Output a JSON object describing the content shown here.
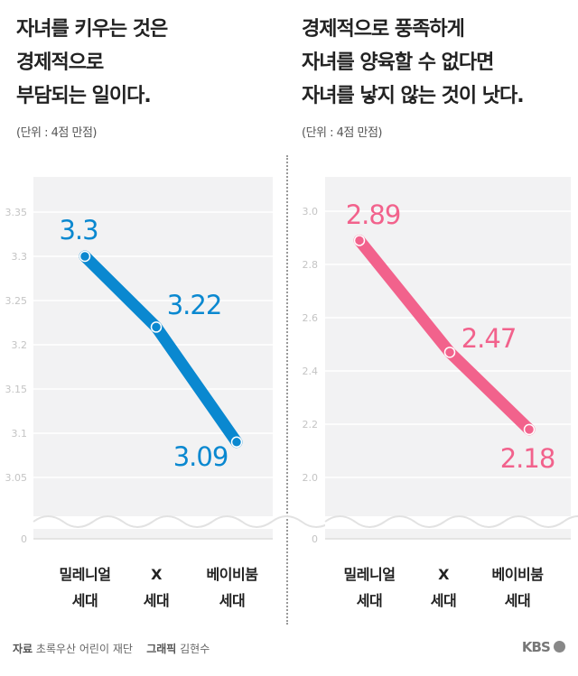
{
  "chart_data": [
    {
      "type": "line",
      "title": "자녀를 키우는 것은\n경제적으로\n부담되는 일이다.",
      "unit": "(단위 : 4점 만점)",
      "categories": [
        "밀레니얼\n세대",
        "X\n세대",
        "베이비붐\n세대"
      ],
      "values": [
        3.3,
        3.22,
        3.09
      ],
      "data_labels": [
        "3.3",
        "3.22",
        "3.09"
      ],
      "yticks": [
        "3.35",
        "3.3",
        "3.25",
        "3.2",
        "3.15",
        "3.1",
        "3.05",
        "0"
      ],
      "ylim": [
        3.0,
        3.4
      ],
      "axis_break": true,
      "grid": true,
      "color": "#0a88d0"
    },
    {
      "type": "line",
      "title": "경제적으로 풍족하게\n자녀를 양육할 수 없다면\n자녀를 낳지 않는 것이 낫다.",
      "unit": "(단위 : 4점 만점)",
      "categories": [
        "밀레니얼\n세대",
        "X\n세대",
        "베이비붐\n세대"
      ],
      "values": [
        2.89,
        2.47,
        2.18
      ],
      "data_labels": [
        "2.89",
        "2.47",
        "2.18"
      ],
      "yticks": [
        "3.0",
        "2.8",
        "2.6",
        "2.4",
        "2.2",
        "2.0",
        "0"
      ],
      "ylim": [
        1.8,
        3.2
      ],
      "axis_break": true,
      "grid": true,
      "color": "#f2628c"
    }
  ],
  "footer": {
    "source_label": "자료",
    "source": "초록우산 어린이 재단",
    "graphic_label": "그래픽",
    "graphic": "김현수",
    "logo": "KBS"
  }
}
